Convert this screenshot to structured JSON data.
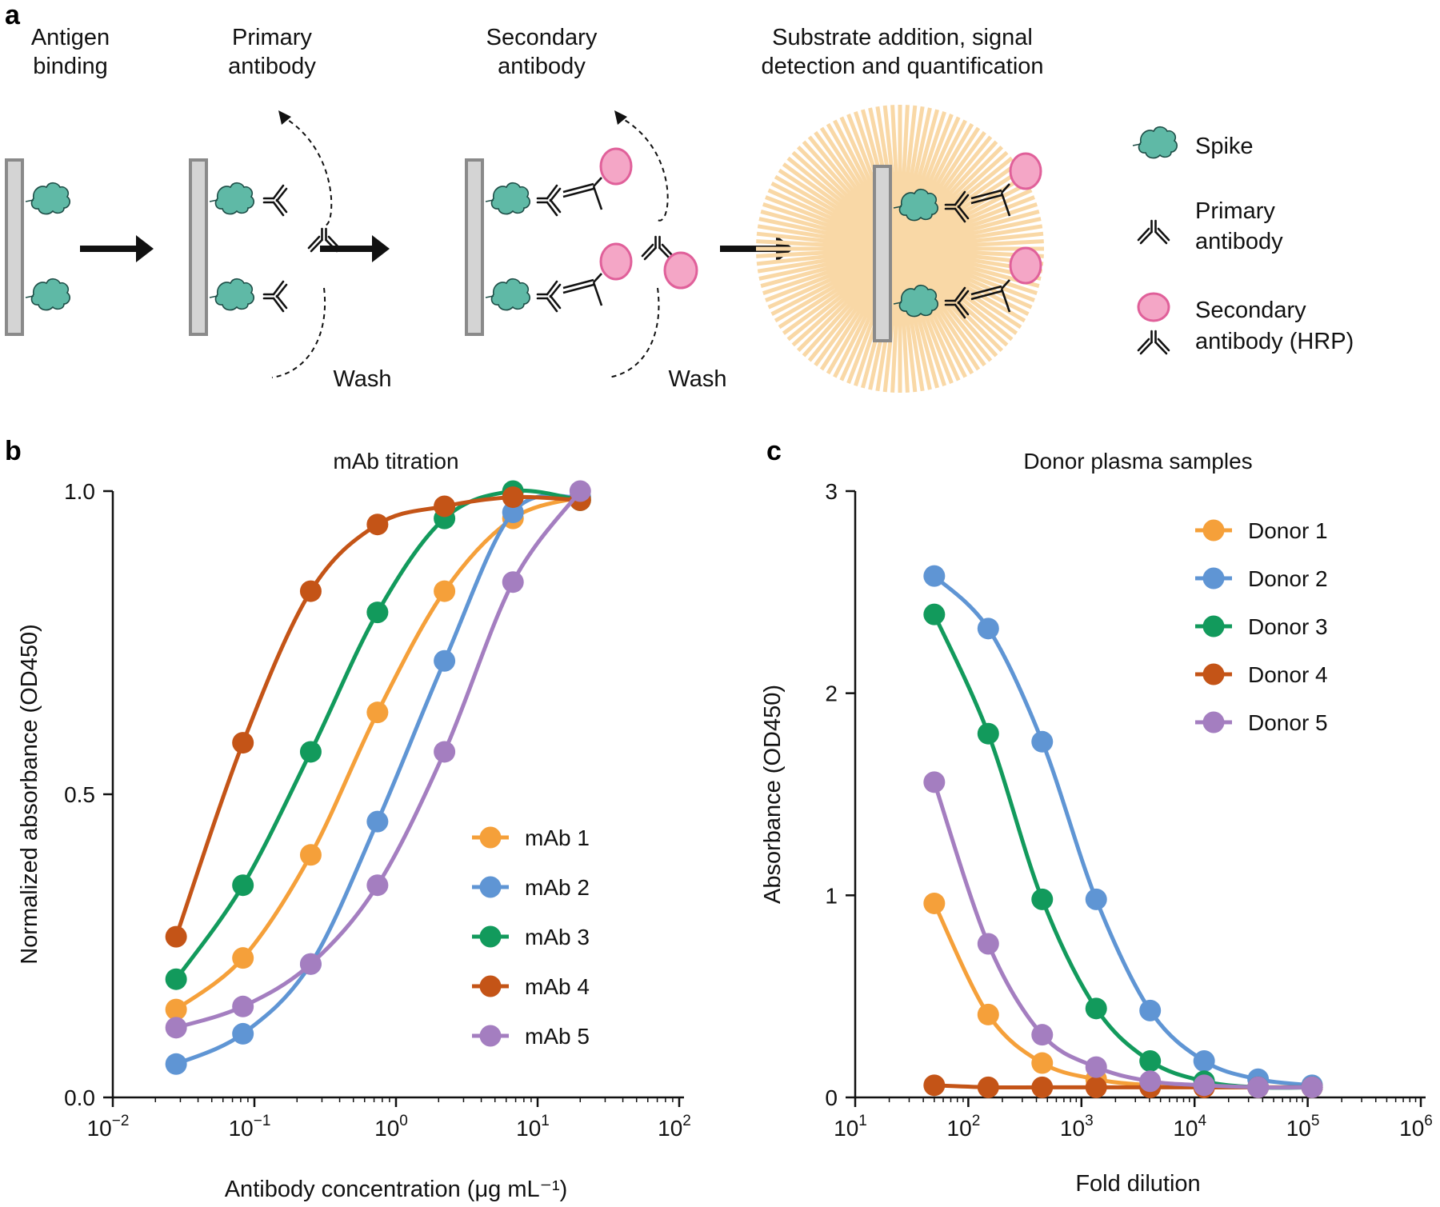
{
  "panel_a": {
    "label": "a",
    "steps": [
      {
        "line1": "Antigen",
        "line2": "binding"
      },
      {
        "line1": "Primary",
        "line2": "antibody"
      },
      {
        "line1": "Secondary",
        "line2": "antibody"
      },
      {
        "line1": "Substrate addition, signal",
        "line2": "detection and quantification"
      }
    ],
    "wash_label": "Wash",
    "legend": [
      {
        "line1": "Spike",
        "line2": ""
      },
      {
        "line1": "Primary",
        "line2": "antibody"
      },
      {
        "line1": "Secondary",
        "line2": "antibody (HRP)"
      }
    ],
    "colors": {
      "spike": "#5fb9a6",
      "hrp": "#f4a6c6",
      "hrp_stroke": "#e0609a",
      "glow": "#f9d8a6",
      "plate": "#d4d4d4"
    }
  },
  "chart_data": [
    {
      "panel": "b",
      "type": "line",
      "title": "mAb titration",
      "xlabel": "Antibody concentration (μg mL⁻¹)",
      "ylabel": "Normalized absorbance (OD450)",
      "xscale": "log",
      "xlim": [
        0.01,
        100
      ],
      "ylim": [
        0,
        1
      ],
      "xticks": [
        0.01,
        0.1,
        1,
        10,
        100
      ],
      "xtick_labels": [
        {
          "base": "10",
          "exp": "−2"
        },
        {
          "base": "10",
          "exp": "−1"
        },
        {
          "base": "10",
          "exp": "0"
        },
        {
          "base": "10",
          "exp": "1"
        },
        {
          "base": "10",
          "exp": "2"
        }
      ],
      "yticks": [
        0,
        0.5,
        1
      ],
      "ytick_labels": [
        "0.0",
        "0.5",
        "1.0"
      ],
      "legend_position": "lower-right",
      "x": [
        0.028,
        0.083,
        0.25,
        0.74,
        2.2,
        6.7,
        20
      ],
      "series": [
        {
          "name": "mAb 1",
          "color": "#f5a03a",
          "values": [
            0.145,
            0.23,
            0.4,
            0.635,
            0.835,
            0.955,
            0.99
          ]
        },
        {
          "name": "mAb 2",
          "color": "#5f95d4",
          "values": [
            0.055,
            0.105,
            0.22,
            0.455,
            0.72,
            0.965,
            0.99
          ]
        },
        {
          "name": "mAb 3",
          "color": "#129a5c",
          "values": [
            0.195,
            0.35,
            0.57,
            0.8,
            0.955,
            1.0,
            0.985
          ]
        },
        {
          "name": "mAb 4",
          "color": "#c45417",
          "values": [
            0.265,
            0.585,
            0.835,
            0.945,
            0.975,
            0.99,
            0.985
          ]
        },
        {
          "name": "mAb 5",
          "color": "#a47ec0",
          "values": [
            0.115,
            0.15,
            0.22,
            0.35,
            0.57,
            0.85,
            1.0
          ]
        }
      ]
    },
    {
      "panel": "c",
      "type": "line",
      "title": "Donor plasma samples",
      "xlabel": "Fold dilution",
      "ylabel": "Absorbance (OD450)",
      "xscale": "log",
      "xlim": [
        10,
        1000000
      ],
      "ylim": [
        0,
        3
      ],
      "xticks": [
        10,
        100,
        1000,
        10000,
        100000,
        1000000
      ],
      "xtick_labels": [
        {
          "base": "10",
          "exp": "1"
        },
        {
          "base": "10",
          "exp": "2"
        },
        {
          "base": "10",
          "exp": "3"
        },
        {
          "base": "10",
          "exp": "4"
        },
        {
          "base": "10",
          "exp": "5"
        },
        {
          "base": "10",
          "exp": "6"
        }
      ],
      "yticks": [
        0,
        1,
        2,
        3
      ],
      "ytick_labels": [
        "0",
        "1",
        "2",
        "3"
      ],
      "legend_position": "top-right",
      "x": [
        50,
        150,
        450,
        1350,
        4050,
        12150,
        36450,
        109350
      ],
      "series": [
        {
          "name": "Donor 1",
          "color": "#f5a03a",
          "values": [
            0.96,
            0.41,
            0.17,
            0.09,
            0.06,
            0.05,
            0.05,
            0.05
          ]
        },
        {
          "name": "Donor 2",
          "color": "#5f95d4",
          "values": [
            2.58,
            2.32,
            1.76,
            0.98,
            0.43,
            0.18,
            0.09,
            0.06
          ]
        },
        {
          "name": "Donor 3",
          "color": "#129a5c",
          "values": [
            2.39,
            1.8,
            0.98,
            0.44,
            0.18,
            0.08,
            0.05,
            0.05
          ]
        },
        {
          "name": "Donor 4",
          "color": "#c45417",
          "values": [
            0.06,
            0.05,
            0.05,
            0.05,
            0.05,
            0.05,
            0.05,
            0.05
          ]
        },
        {
          "name": "Donor 5",
          "color": "#a47ec0",
          "values": [
            1.56,
            0.76,
            0.31,
            0.15,
            0.08,
            0.06,
            0.05,
            0.05
          ]
        }
      ]
    }
  ]
}
